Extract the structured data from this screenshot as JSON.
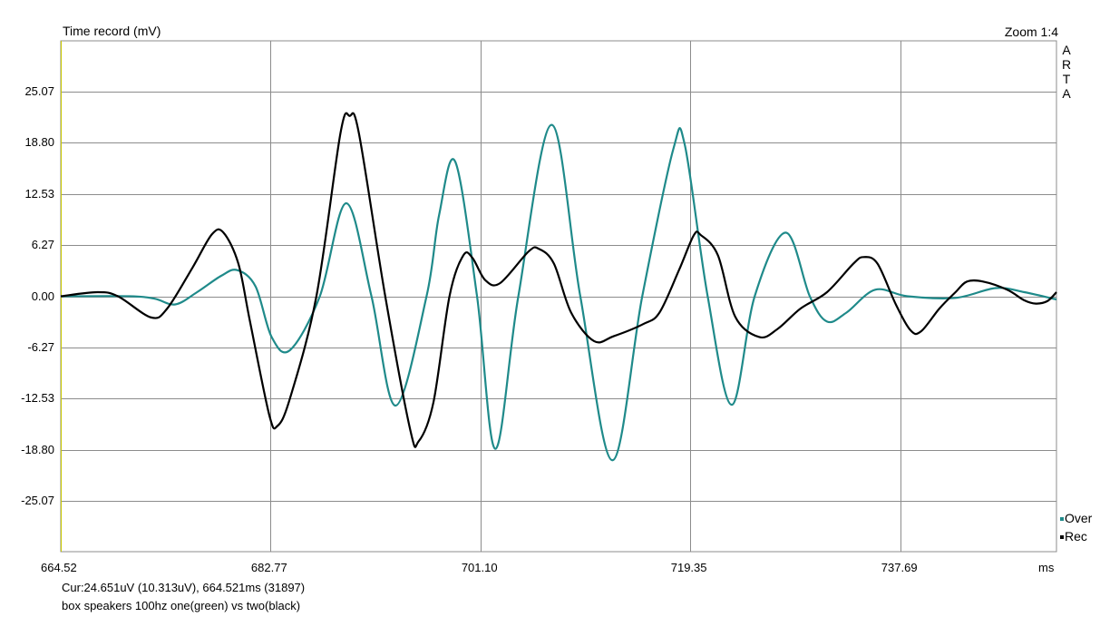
{
  "header": {
    "title": "Time record (mV)",
    "zoom": "Zoom 1:4",
    "brand": [
      "A",
      "R",
      "T",
      "A"
    ]
  },
  "footer": {
    "cursor": "Cur:24.651uV (10.313uV), 664.521ms (31897)",
    "caption": "box speakers 100hz one(green) vs two(black)",
    "x_unit": "ms"
  },
  "colors": {
    "over": "#1f8a8a",
    "rec": "#000000",
    "grid": "#8c8c8c",
    "left_axis": "#c8c800"
  },
  "chart_data": {
    "type": "line",
    "title": "Time record (mV)",
    "xlabel": "ms",
    "ylabel": "",
    "xlim": [
      664.52,
      751.3
    ],
    "ylim": [
      -31.3,
      31.3
    ],
    "x_ticks": [
      "664.52",
      "682.77",
      "701.10",
      "719.35",
      "737.69"
    ],
    "y_ticks": [
      "25.07",
      "18.80",
      "12.53",
      "6.27",
      "0.00",
      "-6.27",
      "-12.53",
      "-18.80",
      "-25.07"
    ],
    "legend": [
      "Over",
      "Rec"
    ],
    "legend_position": "bottom-right",
    "grid": true,
    "series": [
      {
        "name": "Over",
        "color": "#1f8a8a",
        "points": [
          [
            664.52,
            0.0
          ],
          [
            670.5,
            0.0
          ],
          [
            672.7,
            -0.3
          ],
          [
            674.5,
            -1.0
          ],
          [
            676.4,
            0.5
          ],
          [
            678.5,
            2.5
          ],
          [
            679.9,
            3.2
          ],
          [
            681.5,
            1.2
          ],
          [
            682.9,
            -5.0
          ],
          [
            684.5,
            -6.6
          ],
          [
            687.1,
            0.0
          ],
          [
            689.4,
            11.4
          ],
          [
            691.6,
            0.0
          ],
          [
            693.7,
            -13.4
          ],
          [
            696.4,
            0.0
          ],
          [
            697.5,
            10.0
          ],
          [
            698.9,
            16.5
          ],
          [
            700.8,
            0.0
          ],
          [
            702.4,
            -18.7
          ],
          [
            704.4,
            0.0
          ],
          [
            707.3,
            21.0
          ],
          [
            709.8,
            0.0
          ],
          [
            712.6,
            -20.1
          ],
          [
            715.2,
            0.0
          ],
          [
            717.9,
            18.0
          ],
          [
            718.9,
            18.6
          ],
          [
            720.9,
            0.0
          ],
          [
            723.0,
            -13.3
          ],
          [
            725.0,
            0.0
          ],
          [
            727.7,
            7.8
          ],
          [
            729.8,
            0.0
          ],
          [
            731.3,
            -3.1
          ],
          [
            733.0,
            -2.0
          ],
          [
            735.5,
            0.8
          ],
          [
            738.3,
            0.0
          ],
          [
            742.5,
            -0.2
          ],
          [
            746.0,
            1.0
          ],
          [
            748.5,
            0.5
          ],
          [
            751.3,
            -0.4
          ]
        ]
      },
      {
        "name": "Rec",
        "color": "#000000",
        "points": [
          [
            664.52,
            0.0
          ],
          [
            667.7,
            0.5
          ],
          [
            669.5,
            0.0
          ],
          [
            672.4,
            -2.6
          ],
          [
            673.8,
            -1.5
          ],
          [
            676.0,
            3.5
          ],
          [
            677.7,
            7.6
          ],
          [
            678.7,
            7.8
          ],
          [
            680.0,
            4.0
          ],
          [
            681.0,
            -3.0
          ],
          [
            682.7,
            -14.6
          ],
          [
            683.4,
            -15.9
          ],
          [
            684.5,
            -12.5
          ],
          [
            686.8,
            0.0
          ],
          [
            688.9,
            20.0
          ],
          [
            689.7,
            22.1
          ],
          [
            690.5,
            20.0
          ],
          [
            692.8,
            0.0
          ],
          [
            695.0,
            -16.5
          ],
          [
            695.7,
            -17.8
          ],
          [
            697.0,
            -13.0
          ],
          [
            698.4,
            0.0
          ],
          [
            699.6,
            5.0
          ],
          [
            700.4,
            4.7
          ],
          [
            701.5,
            2.0
          ],
          [
            702.8,
            1.6
          ],
          [
            705.3,
            5.5
          ],
          [
            706.2,
            5.8
          ],
          [
            707.5,
            4.0
          ],
          [
            709.0,
            -2.0
          ],
          [
            711.0,
            -5.5
          ],
          [
            712.7,
            -4.9
          ],
          [
            715.3,
            -3.4
          ],
          [
            716.7,
            -2.0
          ],
          [
            718.4,
            3.2
          ],
          [
            719.7,
            7.5
          ],
          [
            720.3,
            7.5
          ],
          [
            721.8,
            5.0
          ],
          [
            723.3,
            -2.5
          ],
          [
            725.4,
            -5.0
          ],
          [
            727.0,
            -4.0
          ],
          [
            729.0,
            -1.5
          ],
          [
            731.3,
            0.5
          ],
          [
            733.6,
            4.0
          ],
          [
            734.5,
            4.8
          ],
          [
            735.7,
            4.0
          ],
          [
            737.3,
            -1.0
          ],
          [
            738.6,
            -4.2
          ],
          [
            739.5,
            -4.3
          ],
          [
            741.1,
            -1.5
          ],
          [
            742.5,
            0.5
          ],
          [
            743.5,
            1.8
          ],
          [
            744.9,
            1.8
          ],
          [
            747.0,
            0.8
          ],
          [
            748.5,
            -0.5
          ],
          [
            749.5,
            -0.9
          ],
          [
            750.5,
            -0.6
          ],
          [
            751.3,
            0.5
          ]
        ]
      }
    ]
  }
}
